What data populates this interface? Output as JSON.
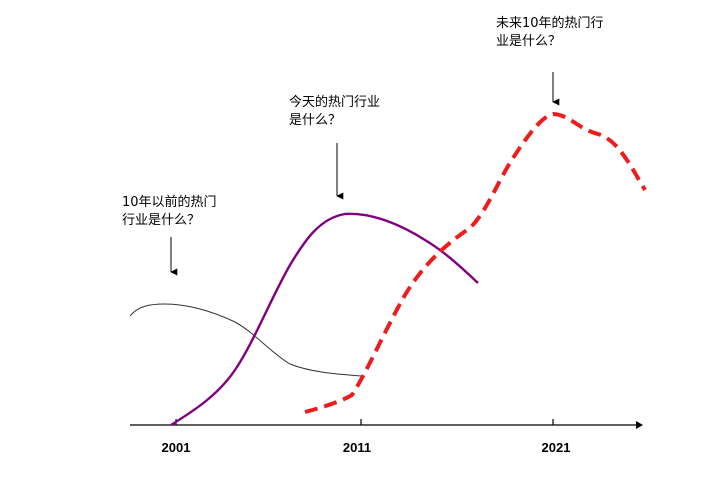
{
  "annotations": {
    "past": {
      "lines": [
        "10年以前的热门",
        "行业是什么？"
      ]
    },
    "present": {
      "lines": [
        "今天的热门行业",
        "是什么？"
      ]
    },
    "future": {
      "lines": [
        "未来10年的热门行",
        "业是什么？"
      ]
    }
  },
  "axis": {
    "ticks": [
      "2001",
      "2011",
      "2021"
    ]
  },
  "colors": {
    "past_curve": "#333333",
    "present_curve": "#800080",
    "future_curve": "#ee1c1c",
    "axis": "#000000"
  }
}
